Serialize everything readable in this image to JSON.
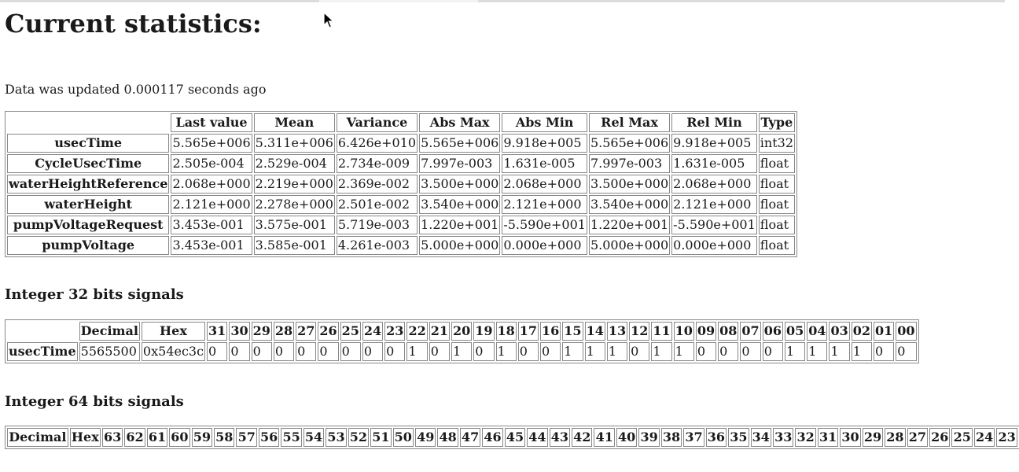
{
  "page": {
    "title": "Current statistics:",
    "updated_text": "Data was updated 0.000117 seconds ago"
  },
  "stats_table": {
    "columns": [
      "Last value",
      "Mean",
      "Variance",
      "Abs Max",
      "Abs Min",
      "Rel Max",
      "Rel Min",
      "Type"
    ],
    "rows": [
      {
        "name": "usecTime",
        "values": [
          "5.565e+006",
          "5.311e+006",
          "6.426e+010",
          "5.565e+006",
          "9.918e+005",
          "5.565e+006",
          "9.918e+005",
          "int32"
        ]
      },
      {
        "name": "CycleUsecTime",
        "values": [
          "2.505e-004",
          "2.529e-004",
          "2.734e-009",
          "7.997e-003",
          "1.631e-005",
          "7.997e-003",
          "1.631e-005",
          "float"
        ]
      },
      {
        "name": "waterHeightReference",
        "values": [
          "2.068e+000",
          "2.219e+000",
          "2.369e-002",
          "3.500e+000",
          "2.068e+000",
          "3.500e+000",
          "2.068e+000",
          "float"
        ]
      },
      {
        "name": "waterHeight",
        "values": [
          "2.121e+000",
          "2.278e+000",
          "2.501e-002",
          "3.540e+000",
          "2.121e+000",
          "3.540e+000",
          "2.121e+000",
          "float"
        ]
      },
      {
        "name": "pumpVoltageRequest",
        "values": [
          "3.453e-001",
          "3.575e-001",
          "5.719e-003",
          "1.220e+001",
          "-5.590e+001",
          "1.220e+001",
          "-5.590e+001",
          "float"
        ]
      },
      {
        "name": "pumpVoltage",
        "values": [
          "3.453e-001",
          "3.585e-001",
          "4.261e-003",
          "5.000e+000",
          "0.000e+000",
          "5.000e+000",
          "0.000e+000",
          "float"
        ]
      }
    ]
  },
  "int32_section": {
    "heading": "Integer 32 bits signals",
    "header_decimal": "Decimal",
    "header_hex": "Hex",
    "bit_headers": [
      "31",
      "30",
      "29",
      "28",
      "27",
      "26",
      "25",
      "24",
      "23",
      "22",
      "21",
      "20",
      "19",
      "18",
      "17",
      "16",
      "15",
      "14",
      "13",
      "12",
      "11",
      "10",
      "09",
      "08",
      "07",
      "06",
      "05",
      "04",
      "03",
      "02",
      "01",
      "00"
    ],
    "rows": [
      {
        "name": "usecTime",
        "decimal": "5565500",
        "hex": "0x54ec3c",
        "bits": [
          "0",
          "0",
          "0",
          "0",
          "0",
          "0",
          "0",
          "0",
          "0",
          "1",
          "0",
          "1",
          "0",
          "1",
          "0",
          "0",
          "1",
          "1",
          "1",
          "0",
          "1",
          "1",
          "0",
          "0",
          "0",
          "0",
          "1",
          "1",
          "1",
          "1",
          "0",
          "0"
        ]
      }
    ]
  },
  "int64_section": {
    "heading": "Integer 64 bits signals",
    "header_decimal": "Decimal",
    "header_hex": "Hex",
    "bit_headers": [
      "63",
      "62",
      "61",
      "60",
      "59",
      "58",
      "57",
      "56",
      "55",
      "54",
      "53",
      "52",
      "51",
      "50",
      "49",
      "48",
      "47",
      "46",
      "45",
      "44",
      "43",
      "42",
      "41",
      "40",
      "39",
      "38",
      "37",
      "36",
      "35",
      "34",
      "33",
      "32",
      "31",
      "30",
      "29",
      "28",
      "27",
      "26",
      "25",
      "24",
      "23"
    ]
  },
  "icons": {
    "cursor": "mouse-pointer-icon"
  }
}
